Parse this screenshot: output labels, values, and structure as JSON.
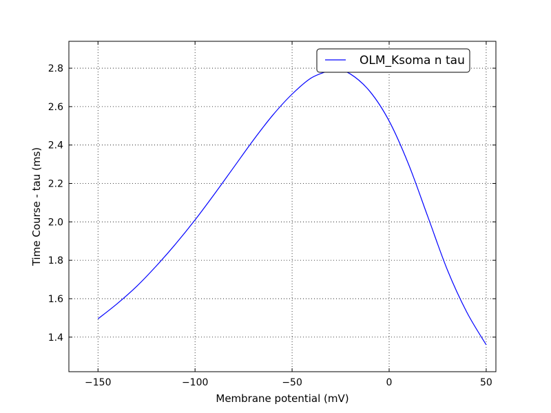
{
  "chart_data": {
    "type": "line",
    "title": "",
    "xlabel": "Membrane potential (mV)",
    "ylabel": "Time Course - tau (ms)",
    "xlim": [
      -165,
      55
    ],
    "ylim": [
      1.22,
      2.94
    ],
    "xticks": [
      -150,
      -100,
      -50,
      0,
      50
    ],
    "xtick_labels": [
      "−150",
      "−100",
      "−50",
      "0",
      "50"
    ],
    "yticks": [
      1.4,
      1.6,
      1.8,
      2.0,
      2.2,
      2.4,
      2.6,
      2.8
    ],
    "ytick_labels": [
      "1.4",
      "1.6",
      "1.8",
      "2.0",
      "2.2",
      "2.4",
      "2.6",
      "2.8"
    ],
    "grid": true,
    "grid_style": "dotted",
    "legend_position": "top-right",
    "series": [
      {
        "name": "OLM_Ksoma n tau",
        "color": "#0000ff",
        "x": [
          -150,
          -140,
          -130,
          -120,
          -110,
          -100,
          -90,
          -80,
          -70,
          -60,
          -50,
          -40,
          -30,
          -28,
          -20,
          -10,
          0,
          10,
          20,
          30,
          40,
          50
        ],
        "y": [
          1.495,
          1.575,
          1.665,
          1.77,
          1.885,
          2.01,
          2.145,
          2.285,
          2.425,
          2.555,
          2.665,
          2.75,
          2.79,
          2.795,
          2.77,
          2.68,
          2.525,
          2.3,
          2.025,
          1.75,
          1.53,
          1.36
        ]
      }
    ]
  }
}
